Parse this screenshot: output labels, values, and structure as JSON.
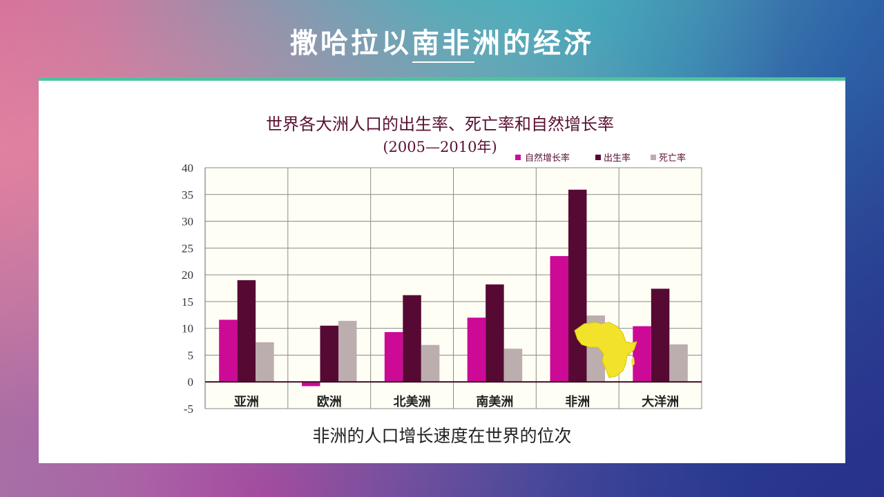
{
  "slide": {
    "title": "撒哈拉以南非洲的经济",
    "caption": "非洲的人口增长速度在世界的位次"
  },
  "colors": {
    "natural_growth": "#cc0a96",
    "birth_rate": "#560a33",
    "death_rate": "#bcadaf",
    "accent_bar": "#4fc2a0",
    "africa_map": "#f2e32a"
  },
  "icons": {
    "africa_map": "africa-map-icon"
  },
  "chart_data": {
    "type": "bar",
    "title": "世界各大洲人口的出生率、死亡率和自然增长率",
    "subtitle": "(2005—2010年)",
    "categories": [
      "亚洲",
      "欧洲",
      "北美洲",
      "南美洲",
      "非洲",
      "大洋洲"
    ],
    "series": [
      {
        "name": "自然增长率",
        "values": [
          11.6,
          -0.8,
          9.3,
          12.0,
          23.5,
          10.4
        ]
      },
      {
        "name": "出生率",
        "values": [
          19.0,
          10.5,
          16.2,
          18.2,
          35.9,
          17.4
        ]
      },
      {
        "name": "死亡率",
        "values": [
          7.4,
          11.4,
          6.9,
          6.2,
          12.4,
          7.0
        ]
      }
    ],
    "ylim": [
      -5,
      40
    ],
    "yticks": [
      "-5",
      "0",
      "5",
      "10",
      "15",
      "20",
      "25",
      "30",
      "35",
      "40"
    ],
    "grid": true,
    "legend_position": "top-right"
  }
}
